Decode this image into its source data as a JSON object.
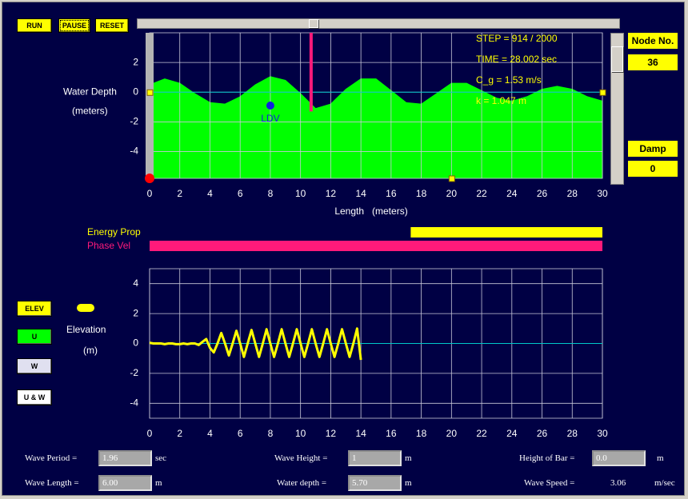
{
  "controls": {
    "run": "RUN",
    "pause": "PAUSE",
    "reset": "RESET"
  },
  "node_panel": {
    "node_label": "Node No.",
    "node_value": "36",
    "damp_label": "Damp",
    "damp_value": "0"
  },
  "chart_data": [
    {
      "type": "area",
      "ylabel": "Water Depth",
      "ylabel_unit": "(meters)",
      "xlabel": "Length   (meters)",
      "x": [
        0,
        1,
        2,
        3,
        4,
        5,
        6,
        7,
        8,
        9,
        10,
        11,
        12,
        13,
        14,
        15,
        16,
        17,
        18,
        19,
        20,
        21,
        22,
        23,
        24,
        25,
        26,
        27,
        28,
        29,
        30
      ],
      "values": [
        0.5,
        0.9,
        0.6,
        -0.1,
        -0.7,
        -0.8,
        -0.3,
        0.5,
        1.05,
        0.8,
        -0.1,
        -1.1,
        -0.8,
        0.2,
        0.9,
        0.9,
        0.1,
        -0.7,
        -0.8,
        -0.1,
        0.6,
        0.6,
        0.1,
        -0.4,
        -0.6,
        -0.3,
        0.2,
        0.4,
        0.2,
        -0.3,
        -0.6
      ],
      "color": "#00ff00",
      "xlim": [
        0,
        30
      ],
      "ylim": [
        -5.8,
        4
      ],
      "xticks": [
        0,
        2,
        4,
        6,
        8,
        10,
        12,
        14,
        16,
        18,
        20,
        22,
        24,
        26,
        28,
        30
      ],
      "yticks": [
        -4,
        -2,
        0,
        2
      ],
      "grid": true,
      "annotations": [
        "STEP = 914 / 2000",
        "TIME = 28.002 sec",
        "C_g  = 1.53 m/s",
        "k = 1.047 m"
      ],
      "ldv": {
        "label": "LDV",
        "x": 8,
        "y": -0.9
      },
      "probe": {
        "x": 10.7,
        "depth": -1.3
      }
    },
    {
      "type": "line",
      "y_unit": "(m)",
      "x": [
        0,
        0.25,
        0.5,
        0.75,
        1,
        1.25,
        1.5,
        1.75,
        2,
        2.25,
        2.5,
        2.75,
        3,
        3.25,
        3.5,
        3.75,
        4,
        4.25,
        4.5,
        4.75,
        5,
        5.25,
        5.5,
        5.75,
        6,
        6.25,
        6.5,
        6.75,
        7,
        7.25,
        7.5,
        7.75,
        8,
        8.25,
        8.5,
        8.75,
        9,
        9.25,
        9.5,
        9.75,
        10,
        10.25,
        10.5,
        10.75,
        11,
        11.25,
        11.5,
        11.75,
        12,
        12.25,
        12.5,
        12.75,
        13,
        13.25,
        13.5,
        13.75,
        14
      ],
      "series": [
        {
          "name": "Elevation",
          "color": "#ffff00",
          "values": [
            0.05,
            0,
            0,
            0,
            -0.05,
            0,
            0,
            -0.05,
            -0.05,
            0,
            -0.05,
            0,
            0,
            -0.1,
            0.1,
            0.3,
            -0.3,
            -0.6,
            0,
            0.7,
            0,
            -0.8,
            0,
            0.85,
            0,
            -0.9,
            0,
            0.9,
            0,
            -0.9,
            0,
            0.95,
            0,
            -0.9,
            0,
            0.95,
            0,
            -0.9,
            0,
            0.95,
            0,
            -0.9,
            0,
            0.95,
            0,
            -0.9,
            0,
            0.95,
            0,
            -0.9,
            0,
            0.95,
            0,
            -0.9,
            0,
            1.0,
            -1.1
          ]
        }
      ],
      "xlim": [
        0,
        30
      ],
      "ylim": [
        -5,
        5
      ],
      "xticks": [
        0,
        2,
        4,
        6,
        8,
        10,
        12,
        14,
        16,
        18,
        20,
        22,
        24,
        26,
        28,
        30
      ],
      "yticks": [
        -4,
        -2,
        0,
        2,
        4
      ],
      "grid": true
    }
  ],
  "propagation": {
    "energy_label": "Energy Prop",
    "phase_label": "Phase Vel",
    "energy_range": [
      17.3,
      30
    ],
    "phase_range": [
      0,
      30
    ]
  },
  "legend_buttons": [
    "ELEV",
    "U",
    "W",
    "U & W"
  ],
  "parameters": [
    {
      "label": "Wave Period =",
      "value": "1.96",
      "unit": "sec"
    },
    {
      "label": "Wave Height =",
      "value": "1",
      "unit": "m"
    },
    {
      "label": "Height of Bar =",
      "value": "0.0",
      "unit": "m"
    },
    {
      "label": "Wave Length =",
      "value": "6.00",
      "unit": "m"
    },
    {
      "label": "Water depth =",
      "value": "5.70",
      "unit": "m"
    },
    {
      "label": "Wave Speed =",
      "value": "3.06",
      "unit": "m/sec"
    }
  ]
}
